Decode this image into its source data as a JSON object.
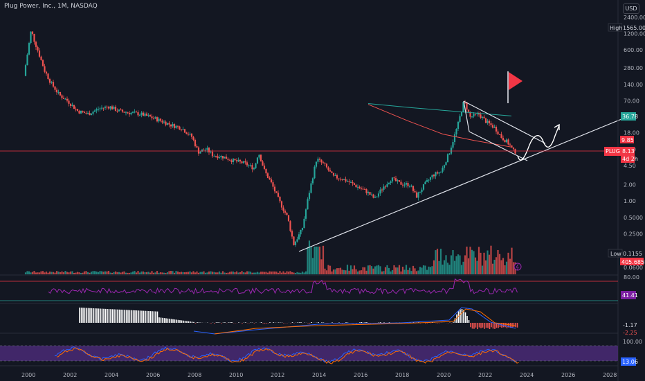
{
  "header": {
    "title": "Plug Power, Inc., 1M, NASDAQ",
    "currency_button": "USD"
  },
  "price_axis": {
    "ticks": [
      "2400.00",
      "1200.00",
      "600.00",
      "280.00",
      "140.00",
      "70.00",
      "36.78",
      "18.00",
      "9.00",
      "4.50",
      "2.00",
      "1.00",
      "0.5000",
      "0.2500",
      "0.1155",
      "0.0600"
    ],
    "high_label": "High",
    "high_value": "1565.00",
    "low_label": "Low",
    "low_value": "0.1155",
    "ma_value": "36.78",
    "ma_color": "#26a69a",
    "sub_value": "9.85",
    "symbol": "PLUG",
    "last_price": "8.13",
    "countdown": "4d 2h",
    "volume_value": "405.685M",
    "up_color": "#26a69a",
    "down_color": "#ef5350",
    "tag_color": "#f23645"
  },
  "time_axis": [
    "2000",
    "2002",
    "2004",
    "2006",
    "2008",
    "2010",
    "2012",
    "2014",
    "2016",
    "2018",
    "2020",
    "2022",
    "2024",
    "2026",
    "2028"
  ],
  "indicators": {
    "rsi": {
      "upper": "80.00",
      "value": "41.41",
      "line_color": "#9c27b0"
    },
    "macd": {
      "value1": "-1.17",
      "value2": "-2.25"
    },
    "stoch": {
      "upper": "100.00",
      "value": "13.06",
      "band_color": "#4a2a75"
    }
  },
  "chart_data": {
    "type": "candlestick",
    "title": "Plug Power, Inc., 1M, NASDAQ",
    "scale": "log",
    "ylim": [
      0.06,
      2400
    ],
    "xlim": [
      1999.5,
      2028.5
    ],
    "high": 1565.0,
    "low": 0.1155,
    "last": 8.13,
    "ma_last": 36.78,
    "price_path": [
      [
        1999.9,
        200
      ],
      [
        2000.1,
        600
      ],
      [
        2000.25,
        1400
      ],
      [
        2000.4,
        900
      ],
      [
        2000.6,
        550
      ],
      [
        2000.9,
        250
      ],
      [
        2001.2,
        150
      ],
      [
        2001.6,
        90
      ],
      [
        2002.0,
        70
      ],
      [
        2002.5,
        45
      ],
      [
        2003.0,
        40
      ],
      [
        2003.5,
        50
      ],
      [
        2004.0,
        55
      ],
      [
        2004.5,
        45
      ],
      [
        2005.0,
        42
      ],
      [
        2005.5,
        40
      ],
      [
        2006.0,
        35
      ],
      [
        2006.5,
        30
      ],
      [
        2007.0,
        25
      ],
      [
        2007.5,
        22
      ],
      [
        2008.0,
        15
      ],
      [
        2008.3,
        8
      ],
      [
        2008.7,
        9
      ],
      [
        2009.0,
        7
      ],
      [
        2009.5,
        6.5
      ],
      [
        2010.0,
        5.5
      ],
      [
        2010.5,
        5.0
      ],
      [
        2011.0,
        4.0
      ],
      [
        2011.2,
        8
      ],
      [
        2011.5,
        3.5
      ],
      [
        2011.8,
        2.2
      ],
      [
        2012.2,
        1.0
      ],
      [
        2012.6,
        0.5
      ],
      [
        2012.9,
        0.16
      ],
      [
        2013.3,
        0.3
      ],
      [
        2013.6,
        1.2
      ],
      [
        2014.0,
        6.0
      ],
      [
        2014.4,
        4.5
      ],
      [
        2014.8,
        2.8
      ],
      [
        2015.2,
        2.6
      ],
      [
        2015.6,
        2.2
      ],
      [
        2016.0,
        1.8
      ],
      [
        2016.4,
        1.5
      ],
      [
        2016.8,
        1.1
      ],
      [
        2017.2,
        1.8
      ],
      [
        2017.6,
        2.6
      ],
      [
        2018.0,
        2.1
      ],
      [
        2018.5,
        2.0
      ],
      [
        2018.8,
        1.2
      ],
      [
        2019.2,
        2.0
      ],
      [
        2019.6,
        3.0
      ],
      [
        2020.0,
        3.5
      ],
      [
        2020.4,
        8.0
      ],
      [
        2020.8,
        25
      ],
      [
        2021.1,
        70
      ],
      [
        2021.4,
        35
      ],
      [
        2021.8,
        40
      ],
      [
        2022.2,
        28
      ],
      [
        2022.6,
        22
      ],
      [
        2022.9,
        15
      ],
      [
        2023.2,
        12
      ],
      [
        2023.5,
        8.13
      ]
    ],
    "moving_averages": [
      {
        "color": "#26a69a",
        "points": [
          [
            2016.4,
            62
          ],
          [
            2018.5,
            52
          ],
          [
            2020.5,
            45
          ],
          [
            2023.3,
            36.78
          ]
        ]
      },
      {
        "color": "#ef5350",
        "points": [
          [
            2016.4,
            60
          ],
          [
            2018.3,
            30
          ],
          [
            2020.0,
            17
          ],
          [
            2021.5,
            13
          ],
          [
            2023.3,
            9.85
          ]
        ]
      }
    ]
  }
}
